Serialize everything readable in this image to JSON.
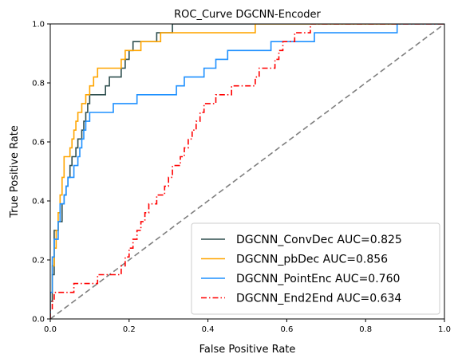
{
  "chart_data": {
    "type": "line",
    "title": "ROC_Curve DGCNN-Encoder",
    "xlabel": "False Positive Rate",
    "ylabel": "True Positive Rate",
    "xlim": [
      0,
      1
    ],
    "ylim": [
      0,
      1
    ],
    "xticks": [
      "0.0",
      "0.2",
      "0.4",
      "0.6",
      "0.8",
      "1.0"
    ],
    "yticks": [
      "0.0",
      "0.2",
      "0.4",
      "0.6",
      "0.8",
      "1.0"
    ],
    "grid": false,
    "legend_position": "lower-right",
    "diagonal": {
      "x": [
        0,
        1
      ],
      "y": [
        0,
        1
      ],
      "color": "#7f7f7f",
      "style": "dashed"
    },
    "series": [
      {
        "name": "DGCNN_ConvDec AUC=0.825",
        "color": "#2f4f4f",
        "style": "solid",
        "x": [
          0,
          0,
          0.005,
          0.005,
          0.01,
          0.01,
          0.02,
          0.02,
          0.03,
          0.03,
          0.035,
          0.035,
          0.04,
          0.04,
          0.045,
          0.045,
          0.05,
          0.05,
          0.055,
          0.055,
          0.065,
          0.065,
          0.07,
          0.07,
          0.08,
          0.08,
          0.085,
          0.085,
          0.09,
          0.09,
          0.095,
          0.095,
          0.1,
          0.1,
          0.14,
          0.14,
          0.15,
          0.15,
          0.18,
          0.18,
          0.19,
          0.19,
          0.2,
          0.2,
          0.21,
          0.21,
          0.27,
          0.27,
          0.31,
          0.31,
          0.32,
          0.32,
          0.38,
          0.38,
          0.39,
          0.39,
          0.41,
          0.41,
          0.52,
          0.52,
          0.59,
          0.59,
          0.64,
          0.64,
          0.97,
          0.97,
          0.99,
          0.99,
          1
        ],
        "y": [
          0,
          0.06,
          0.06,
          0.15,
          0.15,
          0.3,
          0.3,
          0.33,
          0.33,
          0.39,
          0.39,
          0.42,
          0.42,
          0.45,
          0.45,
          0.48,
          0.48,
          0.52,
          0.52,
          0.55,
          0.55,
          0.58,
          0.58,
          0.61,
          0.61,
          0.64,
          0.64,
          0.67,
          0.67,
          0.7,
          0.7,
          0.73,
          0.73,
          0.76,
          0.76,
          0.79,
          0.79,
          0.82,
          0.82,
          0.85,
          0.85,
          0.88,
          0.88,
          0.91,
          0.91,
          0.94,
          0.94,
          0.97,
          0.97,
          1,
          1,
          1,
          1,
          1,
          1,
          1,
          1,
          1,
          1,
          1,
          1,
          1,
          1,
          1,
          1,
          1,
          1,
          1,
          1
        ]
      },
      {
        "name": "DGCNN_pbDec AUC=0.856",
        "color": "#ffa500",
        "style": "solid",
        "x": [
          0,
          0,
          0.005,
          0.005,
          0.01,
          0.01,
          0.015,
          0.015,
          0.02,
          0.02,
          0.025,
          0.025,
          0.03,
          0.03,
          0.035,
          0.035,
          0.05,
          0.05,
          0.055,
          0.055,
          0.06,
          0.06,
          0.065,
          0.065,
          0.07,
          0.07,
          0.08,
          0.08,
          0.09,
          0.09,
          0.1,
          0.1,
          0.11,
          0.11,
          0.12,
          0.12,
          0.18,
          0.18,
          0.19,
          0.19,
          0.23,
          0.23,
          0.28,
          0.28,
          0.52,
          0.52,
          0.53,
          0.53,
          0.57,
          0.57,
          0.66,
          0.66,
          1
        ],
        "y": [
          0,
          0.09,
          0.09,
          0.18,
          0.18,
          0.24,
          0.24,
          0.3,
          0.3,
          0.36,
          0.36,
          0.42,
          0.42,
          0.48,
          0.48,
          0.55,
          0.55,
          0.58,
          0.58,
          0.61,
          0.61,
          0.64,
          0.64,
          0.67,
          0.67,
          0.7,
          0.7,
          0.73,
          0.73,
          0.76,
          0.76,
          0.79,
          0.79,
          0.82,
          0.82,
          0.85,
          0.85,
          0.88,
          0.88,
          0.91,
          0.91,
          0.94,
          0.94,
          0.97,
          0.97,
          1,
          1,
          1,
          1,
          1,
          1,
          1,
          1
        ]
      },
      {
        "name": "DGCNN_PointEnc AUC=0.760",
        "color": "#1e90ff",
        "style": "solid",
        "x": [
          0,
          0,
          0.005,
          0.005,
          0.01,
          0.01,
          0.02,
          0.02,
          0.025,
          0.025,
          0.035,
          0.035,
          0.04,
          0.04,
          0.045,
          0.045,
          0.06,
          0.06,
          0.07,
          0.07,
          0.075,
          0.075,
          0.08,
          0.08,
          0.085,
          0.085,
          0.09,
          0.09,
          0.1,
          0.1,
          0.16,
          0.16,
          0.22,
          0.22,
          0.32,
          0.32,
          0.34,
          0.34,
          0.39,
          0.39,
          0.42,
          0.42,
          0.45,
          0.45,
          0.56,
          0.56,
          0.67,
          0.67,
          0.88,
          0.88,
          0.96,
          0.96,
          1
        ],
        "y": [
          0,
          0.09,
          0.09,
          0.21,
          0.21,
          0.27,
          0.27,
          0.33,
          0.33,
          0.39,
          0.39,
          0.42,
          0.42,
          0.45,
          0.45,
          0.48,
          0.48,
          0.52,
          0.52,
          0.55,
          0.55,
          0.58,
          0.58,
          0.61,
          0.61,
          0.64,
          0.64,
          0.67,
          0.67,
          0.7,
          0.7,
          0.73,
          0.73,
          0.76,
          0.76,
          0.79,
          0.79,
          0.82,
          0.82,
          0.85,
          0.85,
          0.88,
          0.88,
          0.91,
          0.91,
          0.94,
          0.94,
          0.97,
          0.97,
          1,
          1,
          1,
          1
        ]
      },
      {
        "name": "DGCNN_End2End AUC=0.634",
        "color": "#ff0000",
        "style": "dashdot",
        "x": [
          0,
          0,
          0.005,
          0.005,
          0.01,
          0.01,
          0.06,
          0.06,
          0.12,
          0.12,
          0.18,
          0.18,
          0.19,
          0.19,
          0.2,
          0.2,
          0.21,
          0.21,
          0.22,
          0.22,
          0.23,
          0.23,
          0.24,
          0.24,
          0.25,
          0.25,
          0.27,
          0.27,
          0.29,
          0.29,
          0.3,
          0.3,
          0.31,
          0.31,
          0.33,
          0.33,
          0.34,
          0.34,
          0.35,
          0.35,
          0.36,
          0.36,
          0.37,
          0.37,
          0.38,
          0.38,
          0.39,
          0.39,
          0.42,
          0.42,
          0.46,
          0.46,
          0.52,
          0.52,
          0.53,
          0.53,
          0.57,
          0.57,
          0.58,
          0.58,
          0.59,
          0.59,
          0.62,
          0.62,
          0.66,
          0.66,
          0.69,
          0.69,
          0.71,
          0.71,
          0.78,
          0.78,
          0.82,
          0.82,
          0.86,
          0.86,
          0.93,
          0.93,
          0.96,
          0.96,
          0.99,
          0.99,
          1
        ],
        "y": [
          0,
          0.03,
          0.03,
          0.06,
          0.06,
          0.09,
          0.09,
          0.12,
          0.12,
          0.15,
          0.15,
          0.18,
          0.18,
          0.21,
          0.21,
          0.24,
          0.24,
          0.27,
          0.27,
          0.3,
          0.3,
          0.33,
          0.33,
          0.36,
          0.36,
          0.39,
          0.39,
          0.42,
          0.42,
          0.45,
          0.45,
          0.48,
          0.48,
          0.52,
          0.52,
          0.55,
          0.55,
          0.58,
          0.58,
          0.61,
          0.61,
          0.64,
          0.64,
          0.67,
          0.67,
          0.7,
          0.7,
          0.73,
          0.73,
          0.76,
          0.76,
          0.79,
          0.79,
          0.82,
          0.82,
          0.85,
          0.85,
          0.88,
          0.88,
          0.91,
          0.91,
          0.94,
          0.94,
          0.97,
          0.97,
          1,
          1,
          1,
          1,
          1,
          1,
          1,
          1,
          1,
          1,
          1,
          1,
          1,
          1,
          1,
          1,
          1,
          1
        ]
      }
    ]
  }
}
